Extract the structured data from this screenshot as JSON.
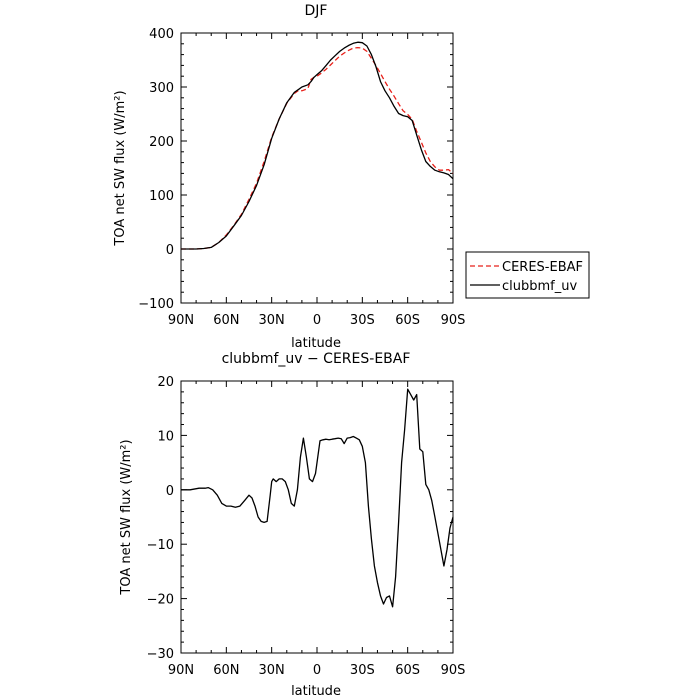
{
  "chart_data": [
    {
      "type": "line",
      "title": "DJF",
      "xlabel": "latitude",
      "ylabel": "TOA net SW flux (W/m²)",
      "xlim": [
        90,
        -90
      ],
      "ylim": [
        -100,
        400
      ],
      "yticks": [
        -100,
        0,
        100,
        200,
        300,
        400
      ],
      "yticklabels": [
        "−100",
        "0",
        "100",
        "200",
        "300",
        "400"
      ],
      "xticks": [
        90,
        60,
        30,
        0,
        -30,
        -60,
        -90
      ],
      "xticklabels": [
        "90N",
        "60N",
        "30N",
        "0",
        "30S",
        "60S",
        "90S"
      ],
      "grid": false,
      "legend_position": "outside-right",
      "series": [
        {
          "name": "CERES-EBAF",
          "color": "#e8201a",
          "dash": "dashed",
          "x": [
            90,
            80,
            75,
            70,
            65,
            60,
            55,
            50,
            45,
            40,
            35,
            30,
            25,
            20,
            15,
            12,
            10,
            6,
            4,
            2,
            0,
            -3,
            -6,
            -9,
            -12,
            -15,
            -18,
            -21,
            -24,
            -27,
            -30,
            -33,
            -36,
            -39,
            -42,
            -45,
            -48,
            -51,
            -54,
            -57,
            -60,
            -63,
            -66,
            -69,
            -72,
            -75,
            -78,
            -81,
            -84,
            -87,
            -90
          ],
          "y": [
            0,
            0,
            1,
            3,
            12,
            26,
            44,
            64,
            92,
            122,
            162,
            207,
            241,
            270,
            288,
            294,
            293,
            297,
            314,
            318,
            320,
            326,
            333,
            341,
            349,
            357,
            363,
            368,
            372,
            373,
            372,
            366,
            353,
            340,
            325,
            310,
            296,
            283,
            269,
            256,
            249,
            240,
            218,
            198,
            178,
            162,
            152,
            146,
            146,
            147,
            140
          ]
        },
        {
          "name": "clubbmf_uv",
          "color": "#000000",
          "dash": "solid",
          "x": [
            90,
            80,
            75,
            70,
            65,
            60,
            55,
            50,
            45,
            40,
            35,
            30,
            25,
            20,
            15,
            12,
            10,
            6,
            4,
            2,
            0,
            -3,
            -6,
            -9,
            -12,
            -15,
            -18,
            -21,
            -24,
            -27,
            -30,
            -33,
            -36,
            -39,
            -42,
            -45,
            -48,
            -51,
            -54,
            -57,
            -60,
            -63,
            -66,
            -69,
            -72,
            -75,
            -78,
            -81,
            -84,
            -87,
            -90
          ],
          "y": [
            0,
            0,
            1,
            3,
            12,
            24,
            43,
            62,
            88,
            118,
            156,
            205,
            241,
            271,
            290,
            296,
            300,
            304,
            310,
            318,
            323,
            330,
            340,
            350,
            358,
            366,
            372,
            377,
            381,
            383,
            382,
            376,
            360,
            338,
            310,
            293,
            280,
            264,
            251,
            247,
            245,
            238,
            211,
            184,
            162,
            153,
            146,
            143,
            141,
            138,
            130
          ]
        }
      ]
    },
    {
      "type": "line",
      "title": "clubbmf_uv − CERES-EBAF",
      "xlabel": "latitude",
      "ylabel": "TOA net SW flux (W/m²)",
      "xlim": [
        90,
        -90
      ],
      "ylim": [
        -30,
        20
      ],
      "yticks": [
        -30,
        -20,
        -10,
        0,
        10,
        20
      ],
      "yticklabels": [
        "−30",
        "−20",
        "−10",
        "0",
        "10",
        "20"
      ],
      "xticks": [
        90,
        60,
        30,
        0,
        -30,
        -60,
        -90
      ],
      "xticklabels": [
        "90N",
        "60N",
        "30N",
        "0",
        "30S",
        "60S",
        "90S"
      ],
      "grid": false,
      "series": [
        {
          "name": "",
          "color": "#000000",
          "dash": "solid",
          "x": [
            90,
            84,
            78,
            74,
            72,
            69,
            66,
            63,
            60,
            57,
            54,
            51,
            48,
            45,
            43,
            41,
            39,
            37,
            35,
            33,
            31,
            30,
            29,
            27,
            25,
            23,
            21,
            19,
            17,
            15,
            13,
            11,
            9,
            7,
            5,
            3,
            1,
            0,
            -2,
            -4,
            -6,
            -8,
            -10,
            -12,
            -14,
            -16,
            -18,
            -20,
            -22,
            -24,
            -26,
            -28,
            -30,
            -32,
            -34,
            -36,
            -38,
            -40,
            -42,
            -44,
            -46,
            -48,
            -50,
            -52,
            -54,
            -56,
            -58,
            -60,
            -62,
            -64,
            -66,
            -68,
            -70,
            -72,
            -74,
            -76,
            -78,
            -80,
            -82,
            -84,
            -86,
            -88,
            -90
          ],
          "y": [
            0,
            0,
            0.3,
            0.3,
            0.4,
            0,
            -1,
            -2.5,
            -3,
            -3,
            -3.2,
            -3,
            -2,
            -1,
            -1.5,
            -3,
            -5,
            -5.8,
            -6,
            -5.8,
            -1,
            1.5,
            2,
            1.5,
            2,
            2,
            1.5,
            0,
            -2.5,
            -3,
            0,
            6,
            9.5,
            6,
            2,
            1.5,
            3,
            5,
            9,
            9.2,
            9.3,
            9.2,
            9.3,
            9.4,
            9.5,
            9.4,
            8.5,
            9.5,
            9.6,
            9.8,
            9.5,
            9.2,
            8,
            5,
            -3,
            -9,
            -14,
            -17,
            -19.5,
            -21,
            -19.8,
            -19.5,
            -21.5,
            -16,
            -6,
            5,
            11,
            18.5,
            17.5,
            16.5,
            17.5,
            7.5,
            7,
            1,
            0,
            -2,
            -5,
            -8,
            -11,
            -14,
            -11,
            -7,
            -5
          ]
        }
      ]
    }
  ]
}
